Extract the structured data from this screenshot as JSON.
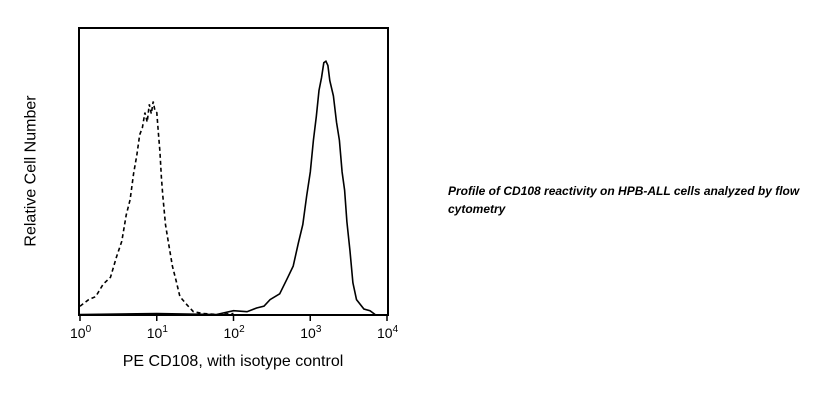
{
  "caption": "Profile of CD108 reactivity on HPB-ALL cells analyzed by flow cytometry",
  "chart_data": {
    "type": "area",
    "title": "",
    "xlabel": "PE CD108, with isotype control",
    "ylabel": "Relative Cell Number",
    "xscale": "log",
    "xlim": [
      1,
      10000
    ],
    "ylim": [
      0,
      100
    ],
    "xticks": [
      {
        "base": "10",
        "exp": "0",
        "value": 1
      },
      {
        "base": "10",
        "exp": "1",
        "value": 10
      },
      {
        "base": "10",
        "exp": "2",
        "value": 100
      },
      {
        "base": "10",
        "exp": "3",
        "value": 1000
      },
      {
        "base": "10",
        "exp": "4",
        "value": 10000
      }
    ],
    "grid": false,
    "legend": "none",
    "series": [
      {
        "style": "dashed",
        "color": "#000000",
        "x": [
          1,
          1.3,
          1.6,
          2.0,
          2.5,
          3.0,
          3.5,
          4.0,
          4.5,
          5.0,
          5.5,
          6.0,
          6.5,
          7.0,
          7.5,
          8.0,
          8.5,
          9.0,
          9.5,
          10,
          10.5,
          11,
          11.5,
          12,
          13,
          14,
          16,
          18,
          20,
          25,
          30,
          40,
          60,
          100
        ],
        "y": [
          3,
          5,
          7,
          10,
          14,
          20,
          27,
          35,
          42,
          50,
          58,
          64,
          68,
          72,
          70,
          75,
          73,
          76,
          74,
          72,
          66,
          58,
          50,
          42,
          33,
          26,
          18,
          11,
          7,
          3,
          1,
          0,
          0,
          0
        ]
      },
      {
        "style": "solid",
        "color": "#000000",
        "x": [
          1,
          10,
          60,
          100,
          150,
          200,
          250,
          300,
          400,
          500,
          600,
          700,
          800,
          900,
          1000,
          1100,
          1200,
          1300,
          1400,
          1500,
          1600,
          1700,
          1800,
          2000,
          2200,
          2400,
          2600,
          2800,
          3000,
          3300,
          3600,
          4000,
          5000,
          6000,
          7000
        ],
        "y": [
          0,
          0,
          0,
          1,
          1,
          2,
          3,
          5,
          8,
          12,
          18,
          25,
          33,
          42,
          52,
          62,
          72,
          80,
          86,
          90,
          92,
          89,
          85,
          78,
          70,
          62,
          52,
          44,
          34,
          22,
          12,
          5,
          2,
          1,
          0
        ]
      }
    ]
  }
}
